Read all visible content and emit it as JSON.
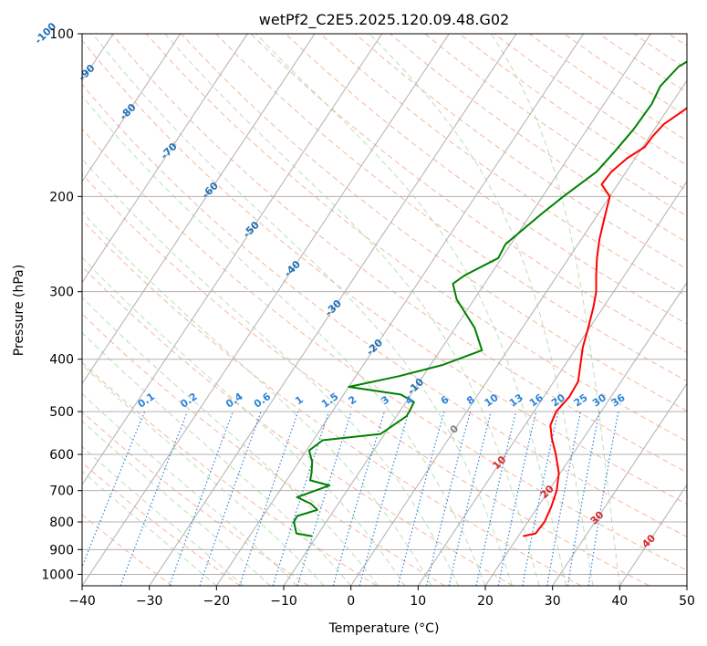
{
  "chart_data": {
    "type": "line",
    "title": "wetPf2_C2E5.2025.120.09.48.G02",
    "xlabel": "Temperature (°C)",
    "ylabel": "Pressure (hPa)",
    "xlim": [
      -40,
      50
    ],
    "ylim": [
      1050,
      100
    ],
    "y_scale": "log",
    "x_ticks": [
      -40,
      -30,
      -20,
      -10,
      0,
      10,
      20,
      30,
      40,
      50
    ],
    "y_ticks": [
      100,
      200,
      300,
      400,
      500,
      600,
      700,
      800,
      900,
      1000
    ],
    "grid": true,
    "skew_t": true,
    "series": [
      {
        "color": "#ff0000",
        "points": [
          [
            20.7,
            850
          ],
          [
            22.3,
            840
          ],
          [
            22.5,
            800
          ],
          [
            22.0,
            750
          ],
          [
            21.2,
            700
          ],
          [
            19.8,
            650
          ],
          [
            17.5,
            600
          ],
          [
            15.3,
            560
          ],
          [
            13.8,
            530
          ],
          [
            13.3,
            500
          ],
          [
            13.8,
            470
          ],
          [
            13.6,
            440
          ],
          [
            12.3,
            410
          ],
          [
            10.9,
            380
          ],
          [
            9.8,
            350
          ],
          [
            8.5,
            320
          ],
          [
            7.4,
            300
          ],
          [
            5.8,
            280
          ],
          [
            4.2,
            260
          ],
          [
            2.7,
            240
          ],
          [
            1.4,
            220
          ],
          [
            0.0,
            200
          ],
          [
            -2.4,
            190
          ],
          [
            -2.2,
            180
          ],
          [
            -1.2,
            170
          ],
          [
            0.3,
            162
          ],
          [
            0.4,
            155
          ],
          [
            0.9,
            147
          ],
          [
            2.6,
            138
          ],
          [
            4.2,
            128
          ],
          [
            5.5,
            120
          ],
          [
            7.6,
            110
          ],
          [
            9.8,
            100
          ]
        ]
      },
      {
        "color": "#008000",
        "points": [
          [
            -10.7,
            850
          ],
          [
            -13.3,
            840
          ],
          [
            -14.8,
            800
          ],
          [
            -14.9,
            780
          ],
          [
            -12.5,
            760
          ],
          [
            -14.1,
            740
          ],
          [
            -16.8,
            720
          ],
          [
            -13.1,
            685
          ],
          [
            -16.5,
            670
          ],
          [
            -17.0,
            650
          ],
          [
            -18.0,
            620
          ],
          [
            -19.6,
            590
          ],
          [
            -18.6,
            565
          ],
          [
            -10.6,
            550
          ],
          [
            -8.5,
            510
          ],
          [
            -8.6,
            495
          ],
          [
            -8.8,
            480
          ],
          [
            -11.5,
            465
          ],
          [
            -20.0,
            450
          ],
          [
            -13.6,
            430
          ],
          [
            -8.2,
            410
          ],
          [
            -3.8,
            385
          ],
          [
            -7.1,
            350
          ],
          [
            -12.6,
            310
          ],
          [
            -14.7,
            290
          ],
          [
            -13.8,
            280
          ],
          [
            -10.5,
            260
          ],
          [
            -10.8,
            245
          ],
          [
            -8.4,
            215
          ],
          [
            -6.9,
            200
          ],
          [
            -4.4,
            180
          ],
          [
            -3.7,
            165
          ],
          [
            -3.1,
            150
          ],
          [
            -2.9,
            135
          ],
          [
            -3.4,
            125
          ],
          [
            -2.6,
            115
          ],
          [
            0.6,
            105
          ],
          [
            3.7,
            100
          ]
        ]
      }
    ],
    "isotherm_labels": [
      "-100",
      "-90",
      "-80",
      "-70",
      "-60",
      "-50",
      "-40",
      "-30",
      "-20",
      "-10",
      "0",
      "10",
      "20",
      "30",
      "40"
    ],
    "mixing_ratio_labels": [
      "0.1",
      "0.2",
      "0.4",
      "0.6",
      "1",
      "1.5",
      "2",
      "3",
      "4",
      "6",
      "8",
      "10",
      "13",
      "16",
      "20",
      "25",
      "30",
      "36"
    ],
    "colors": {
      "temperature": "#ff0000",
      "dewpoint": "#008000",
      "dry_adiabat": "#f4a582",
      "moist_adiabat": "#b5dcb0",
      "mixing_ratio": "#2b83d9",
      "isotherm_cold_label": "#1f6fb5",
      "isotherm_warm_label": "#d62728",
      "isotherm_zero_label": "#808080",
      "grid": "#b0b0b0",
      "curved_guide": "#d9c4a8"
    }
  }
}
